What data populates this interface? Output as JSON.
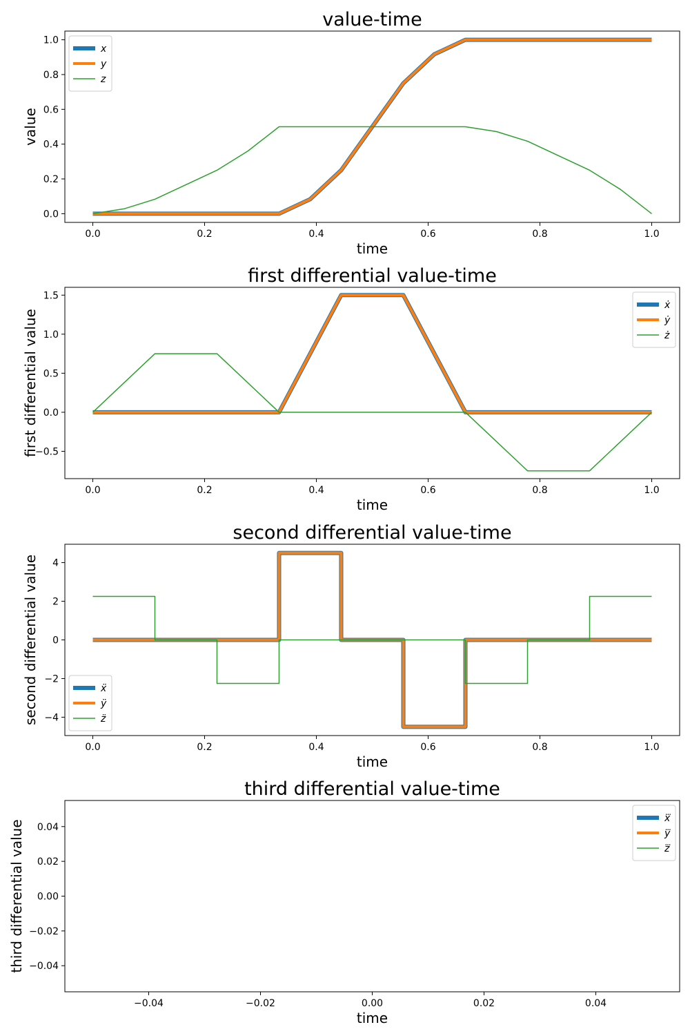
{
  "figure": {
    "colors": {
      "x": "#1f77b4",
      "y": "#ff7f0e",
      "z": "#2ca02c"
    }
  },
  "chart_data": [
    {
      "type": "line",
      "title": "value-time",
      "xlabel": "time",
      "ylabel": "value",
      "xlim": [
        -0.05,
        1.05
      ],
      "ylim": [
        -0.05,
        1.05
      ],
      "xticks": [
        0.0,
        0.2,
        0.4,
        0.6,
        0.8,
        1.0
      ],
      "xtick_labels": [
        "0.0",
        "0.2",
        "0.4",
        "0.6",
        "0.8",
        "1.0"
      ],
      "yticks": [
        0.0,
        0.2,
        0.4,
        0.6,
        0.8,
        1.0
      ],
      "ytick_labels": [
        "0.0",
        "0.2",
        "0.4",
        "0.6",
        "0.8",
        "1.0"
      ],
      "grid": false,
      "legend": "upper left",
      "x": [
        0.0,
        0.0556,
        0.1111,
        0.1667,
        0.2222,
        0.2778,
        0.3333,
        0.3889,
        0.4444,
        0.5,
        0.5556,
        0.6111,
        0.6667,
        0.7222,
        0.7778,
        0.8333,
        0.8889,
        0.9444,
        1.0
      ],
      "series": [
        {
          "name": "x",
          "values": [
            0.0,
            0.0,
            0.0,
            0.0,
            0.0,
            0.0,
            0.0,
            0.0833,
            0.25,
            0.5,
            0.75,
            0.9167,
            1.0,
            1.0,
            1.0,
            1.0,
            1.0,
            1.0,
            1.0
          ]
        },
        {
          "name": "y",
          "values": [
            0.0,
            0.0,
            0.0,
            0.0,
            0.0,
            0.0,
            0.0,
            0.0833,
            0.25,
            0.5,
            0.75,
            0.9167,
            1.0,
            1.0,
            1.0,
            1.0,
            1.0,
            1.0,
            1.0
          ]
        },
        {
          "name": "z",
          "values": [
            0.0,
            0.0278,
            0.0833,
            0.1667,
            0.25,
            0.3611,
            0.5,
            0.5,
            0.5,
            0.5,
            0.5,
            0.5,
            0.5,
            0.4722,
            0.4167,
            0.3333,
            0.25,
            0.1389,
            0.0
          ]
        }
      ]
    },
    {
      "type": "line",
      "title": "first differential value-time",
      "xlabel": "time",
      "ylabel": "first differential value",
      "xlim": [
        -0.05,
        1.05
      ],
      "ylim": [
        -0.85,
        1.6
      ],
      "xticks": [
        0.0,
        0.2,
        0.4,
        0.6,
        0.8,
        1.0
      ],
      "xtick_labels": [
        "0.0",
        "0.2",
        "0.4",
        "0.6",
        "0.8",
        "1.0"
      ],
      "yticks": [
        -0.5,
        0.0,
        0.5,
        1.0,
        1.5
      ],
      "ytick_labels": [
        "−0.5",
        "0.0",
        "0.5",
        "1.0",
        "1.5"
      ],
      "grid": false,
      "legend": "upper right",
      "x": [
        0.0,
        0.1111,
        0.2222,
        0.3333,
        0.4444,
        0.5556,
        0.6667,
        0.7778,
        0.8889,
        1.0
      ],
      "series": [
        {
          "name": "ẋ",
          "values": [
            0.0,
            0.0,
            0.0,
            0.0,
            1.5,
            1.5,
            0.0,
            0.0,
            0.0,
            0.0
          ]
        },
        {
          "name": "ẏ",
          "values": [
            0.0,
            0.0,
            0.0,
            0.0,
            1.5,
            1.5,
            0.0,
            0.0,
            0.0,
            0.0
          ]
        },
        {
          "name": "ż",
          "values": [
            0.0,
            0.75,
            0.75,
            0.0,
            0.0,
            0.0,
            0.0,
            -0.75,
            -0.75,
            0.0
          ]
        }
      ]
    },
    {
      "type": "line",
      "title": "second differential value-time",
      "xlabel": "time",
      "ylabel": "second differential value",
      "xlim": [
        -0.05,
        1.05
      ],
      "ylim": [
        -4.95,
        4.95
      ],
      "xticks": [
        0.0,
        0.2,
        0.4,
        0.6,
        0.8,
        1.0
      ],
      "xtick_labels": [
        "0.0",
        "0.2",
        "0.4",
        "0.6",
        "0.8",
        "1.0"
      ],
      "yticks": [
        -4,
        -2,
        0,
        2,
        4
      ],
      "ytick_labels": [
        "−4",
        "−2",
        "0",
        "2",
        "4"
      ],
      "grid": false,
      "legend": "lower left",
      "x": [
        0.0,
        0.1111,
        0.1111,
        0.2222,
        0.2222,
        0.3333,
        0.3333,
        0.4444,
        0.4444,
        0.5556,
        0.5556,
        0.6667,
        0.6667,
        0.7778,
        0.7778,
        0.8889,
        0.8889,
        1.0
      ],
      "series": [
        {
          "name": "ẍ",
          "values": [
            0.0,
            0.0,
            0.0,
            0.0,
            0.0,
            0.0,
            4.5,
            4.5,
            0.0,
            0.0,
            -4.5,
            -4.5,
            0.0,
            0.0,
            0.0,
            0.0,
            0.0,
            0.0
          ]
        },
        {
          "name": "ÿ",
          "values": [
            0.0,
            0.0,
            0.0,
            0.0,
            0.0,
            0.0,
            4.5,
            4.5,
            0.0,
            0.0,
            -4.5,
            -4.5,
            0.0,
            0.0,
            0.0,
            0.0,
            0.0,
            0.0
          ]
        },
        {
          "name": "z̈",
          "values": [
            2.25,
            2.25,
            0.0,
            0.0,
            -2.25,
            -2.25,
            0.0,
            0.0,
            0.0,
            0.0,
            0.0,
            0.0,
            -2.25,
            -2.25,
            0.0,
            0.0,
            2.25,
            2.25
          ]
        }
      ]
    },
    {
      "type": "line",
      "title": "third differential value-time",
      "xlabel": "time",
      "ylabel": "third differential value",
      "xlim": [
        -0.055,
        0.055
      ],
      "ylim": [
        -0.055,
        0.055
      ],
      "xticks": [
        -0.04,
        -0.02,
        0.0,
        0.02,
        0.04
      ],
      "xtick_labels": [
        "−0.04",
        "−0.02",
        "0.00",
        "0.02",
        "0.04"
      ],
      "yticks": [
        -0.04,
        -0.02,
        0.0,
        0.02,
        0.04
      ],
      "ytick_labels": [
        "−0.04",
        "−0.02",
        "0.00",
        "0.02",
        "0.04"
      ],
      "grid": false,
      "legend": "upper right",
      "x": [],
      "series": [
        {
          "name": "x⃛",
          "values": []
        },
        {
          "name": "y⃛",
          "values": []
        },
        {
          "name": "z⃛",
          "values": []
        }
      ]
    }
  ]
}
